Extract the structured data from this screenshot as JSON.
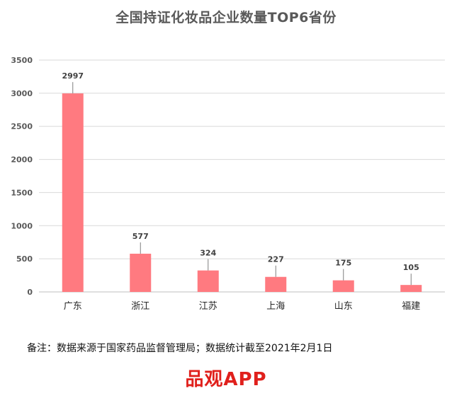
{
  "chart_data": {
    "type": "bar",
    "title": "全国持证化妆品企业数量TOP6省份",
    "categories": [
      "广东",
      "浙江",
      "江苏",
      "上海",
      "山东",
      "福建"
    ],
    "values": [
      2997,
      577,
      324,
      227,
      175,
      105
    ],
    "data_labels": [
      "2997",
      "577",
      "324",
      "227",
      "175",
      "105"
    ],
    "y_ticks": [
      0,
      500,
      1000,
      1500,
      2000,
      2500,
      3000,
      3500
    ],
    "ylim": [
      0,
      3500
    ],
    "grid": true,
    "legend": "none",
    "bar_color": "#ff7a80"
  },
  "footer": {
    "note": "备注：数据来源于国家药品监督管理局；数据统计截至2021年2月1日",
    "brand": "品观APP"
  }
}
